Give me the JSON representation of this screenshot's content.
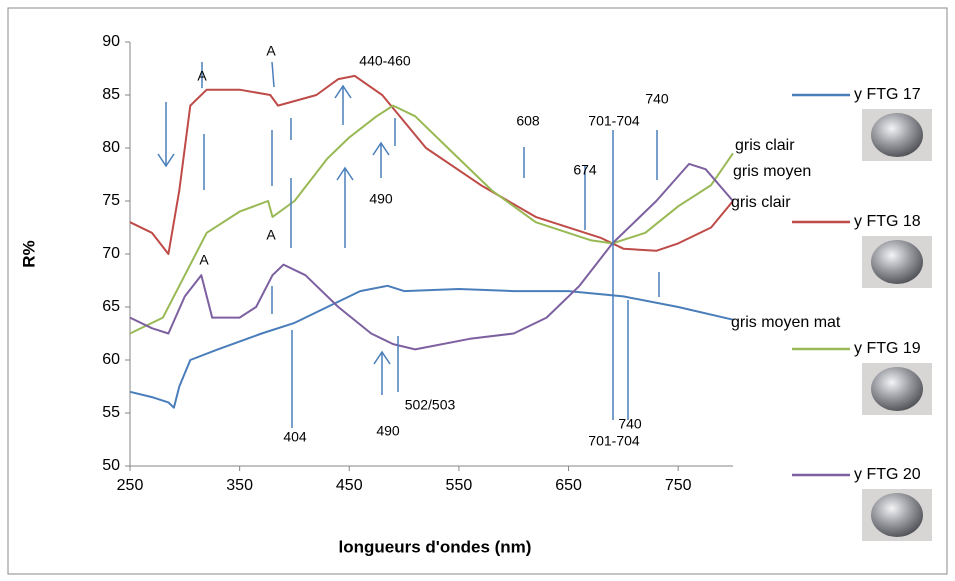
{
  "chart_data": {
    "type": "line",
    "xlabel": "longueurs d'ondes (nm)",
    "ylabel": "R%",
    "xlim": [
      250,
      800
    ],
    "xticks": [
      250,
      350,
      450,
      550,
      650,
      750
    ],
    "ylim": [
      50,
      90
    ],
    "yticks": [
      50,
      55,
      60,
      65,
      70,
      75,
      80,
      85,
      90
    ],
    "series": [
      {
        "name": "y FTG 17",
        "color": "#4a7ebb",
        "x": [
          250,
          270,
          285,
          290,
          295,
          305,
          330,
          370,
          400,
          430,
          460,
          485,
          500,
          550,
          600,
          650,
          700,
          750,
          800
        ],
        "values": [
          57,
          56.5,
          56,
          55.5,
          57.5,
          60,
          61,
          62.5,
          63.5,
          65,
          66.5,
          67,
          66.5,
          66.7,
          66.5,
          66.5,
          66,
          65,
          63.8
        ]
      },
      {
        "name": "y FTG 18",
        "color": "#be4b48",
        "x": [
          250,
          270,
          285,
          295,
          305,
          320,
          350,
          378,
          385,
          420,
          440,
          455,
          480,
          520,
          570,
          620,
          680,
          700,
          730,
          750,
          780,
          800
        ],
        "values": [
          73,
          72,
          70,
          76,
          84,
          85.5,
          85.5,
          85,
          84,
          85,
          86.5,
          86.8,
          85,
          80,
          76.5,
          73.5,
          71.5,
          70.5,
          70.3,
          71,
          72.5,
          75
        ]
      },
      {
        "name": "y FTG 19",
        "color": "#98b954",
        "x": [
          250,
          280,
          300,
          320,
          350,
          376,
          380,
          400,
          430,
          450,
          475,
          490,
          510,
          540,
          580,
          620,
          670,
          690,
          720,
          750,
          780,
          800
        ],
        "values": [
          62.5,
          64,
          68,
          72,
          74,
          75,
          73.5,
          75,
          79,
          81,
          83,
          84,
          83,
          80,
          76,
          73,
          71.3,
          71,
          72,
          74.5,
          76.5,
          79.5
        ]
      },
      {
        "name": "y FTG 20",
        "color": "#7d60a0",
        "x": [
          250,
          270,
          285,
          300,
          315,
          325,
          350,
          365,
          380,
          390,
          410,
          440,
          470,
          490,
          510,
          560,
          600,
          630,
          660,
          690,
          730,
          760,
          775,
          800
        ],
        "values": [
          64,
          63,
          62.5,
          66,
          68,
          64,
          64,
          65,
          68,
          69,
          68,
          65,
          62.5,
          61.5,
          61,
          62,
          62.5,
          64,
          67,
          71,
          75,
          78.5,
          78,
          75
        ]
      }
    ],
    "annotations": [
      {
        "text": "A"
      },
      {
        "text": "A"
      },
      {
        "text": "440-460"
      },
      {
        "text": "608"
      },
      {
        "text": "701-704"
      },
      {
        "text": "740"
      },
      {
        "text": "674"
      },
      {
        "text": "490"
      },
      {
        "text": "A"
      },
      {
        "text": "A"
      },
      {
        "text": "404"
      },
      {
        "text": "490"
      },
      {
        "text": "502/503"
      },
      {
        "text": "740"
      },
      {
        "text": "701-704"
      },
      {
        "text": "gris clair",
        "color": "#76923c"
      },
      {
        "text": "gris moyen",
        "color": "#7030a0"
      },
      {
        "text": "gris clair",
        "color": "#ff0000"
      },
      {
        "text": "gris moyen mat",
        "color": "#1f4e79"
      }
    ]
  }
}
